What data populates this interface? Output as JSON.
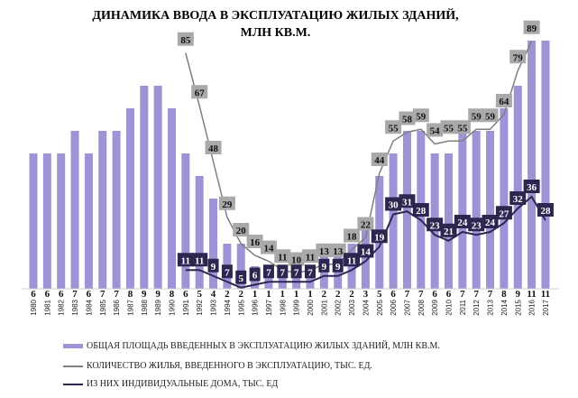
{
  "chart_data": {
    "type": "bar",
    "title": [
      "ДИНАМИКА ВВОДА В ЭКСПЛУАТАЦИЮ ЖИЛЫХ ЗДАНИЙ,",
      "МЛН КВ.М."
    ],
    "categories": [
      "1980",
      "1981",
      "1982",
      "1983",
      "1984",
      "1985",
      "1986",
      "1987",
      "1988",
      "1989",
      "1990",
      "1991",
      "1992",
      "1993",
      "1994",
      "1995",
      "1996",
      "1997",
      "1998",
      "1999",
      "2000",
      "2001",
      "2002",
      "2003",
      "2004",
      "2005",
      "2006",
      "2007",
      "2008",
      "2009",
      "2010",
      "2011",
      "2012",
      "2013",
      "2014",
      "2015",
      "2016",
      "2017"
    ],
    "series": [
      {
        "name": "ОБЩАЯ ПЛОЩАДЬ ВВЕДЕННЫХ В ЭКСПЛУАТАЦИЮ ЖИЛЫХ ЗДАНИЙ, МЛН КВ.М.",
        "type": "bar",
        "color": "#9c94d4",
        "values": [
          6,
          6,
          6,
          7,
          6,
          7,
          7,
          8,
          9,
          9,
          8,
          6,
          5,
          4,
          2,
          2,
          1,
          1,
          1,
          1,
          1,
          2,
          2,
          2,
          3,
          5,
          6,
          7,
          7,
          6,
          6,
          7,
          7,
          7,
          8,
          9,
          11,
          11
        ]
      },
      {
        "name": "КОЛИЧЕСТВО ЖИЛЬЯ, ВВЕДЕННОГО В ЭКСПЛУАТАЦИЮ, ТЫС. ЕД.",
        "type": "line",
        "color": "#808080",
        "values": [
          null,
          null,
          null,
          null,
          null,
          null,
          null,
          null,
          null,
          null,
          null,
          85,
          67,
          48,
          29,
          20,
          16,
          14,
          11,
          10,
          11,
          13,
          13,
          18,
          22,
          44,
          55,
          58,
          59,
          54,
          55,
          55,
          59,
          59,
          64,
          79,
          89,
          null
        ]
      },
      {
        "name": "ИЗ НИХ ИНДИВИДУАЛЬНЫЕ ДОМА, ТЫС. ЕД",
        "type": "line",
        "color": "#2e2650",
        "values": [
          null,
          null,
          null,
          null,
          null,
          null,
          null,
          null,
          null,
          null,
          null,
          11,
          11,
          9,
          7,
          5,
          6,
          7,
          7,
          7,
          7,
          9,
          9,
          11,
          14,
          19,
          30,
          31,
          28,
          23,
          21,
          24,
          23,
          24,
          27,
          32,
          36,
          28
        ]
      }
    ],
    "legend_position": "bottom",
    "grid": false
  }
}
